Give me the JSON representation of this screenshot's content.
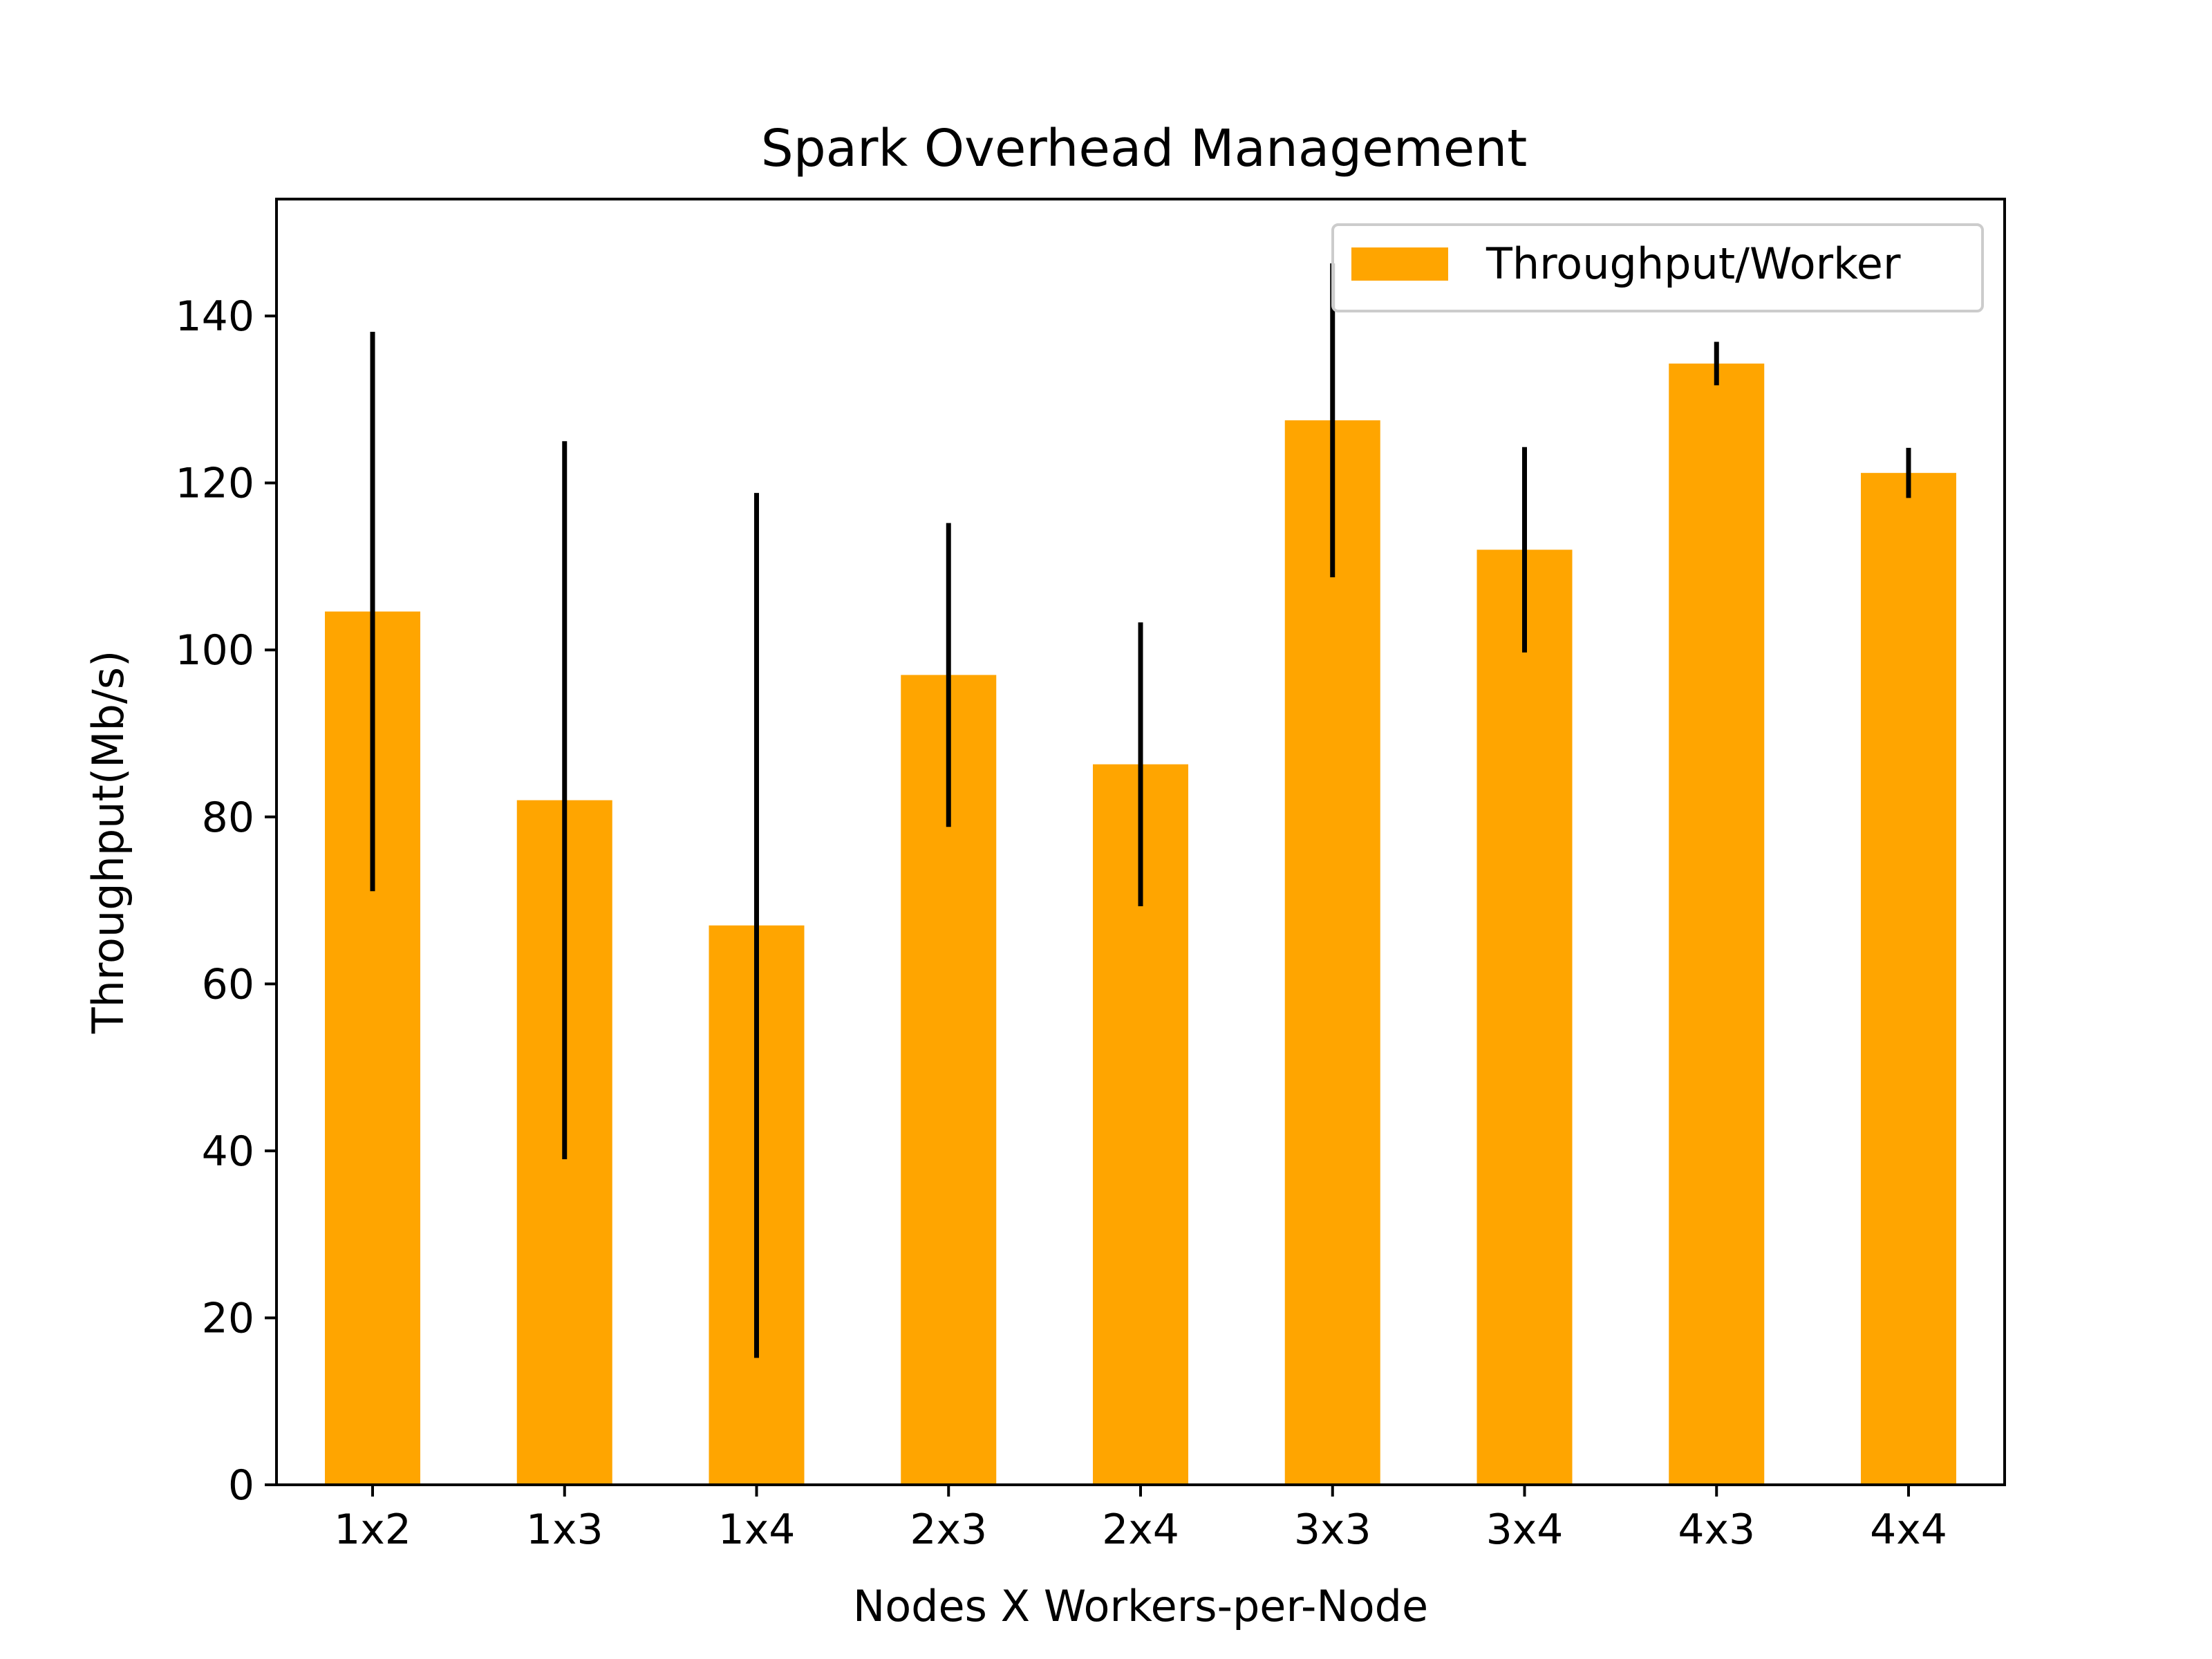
{
  "chart_data": {
    "type": "bar",
    "title": "Spark Overhead Management",
    "xlabel": "Nodes X Workers-per-Node",
    "ylabel": "Throughput(Mb/s)",
    "categories": [
      "1x2",
      "1x3",
      "1x4",
      "2x3",
      "2x4",
      "3x3",
      "3x4",
      "4x3",
      "4x4"
    ],
    "series": [
      {
        "name": "Throughput/Worker",
        "values": [
          104.6,
          82.0,
          67.0,
          97.0,
          86.3,
          127.5,
          112.0,
          134.3,
          121.2
        ],
        "error": [
          33.5,
          43.0,
          51.8,
          18.2,
          17.0,
          18.8,
          12.3,
          2.6,
          3.0
        ],
        "color": "#FFA500"
      }
    ],
    "ylim": [
      0,
      154
    ],
    "yticks": [
      0,
      20,
      40,
      60,
      80,
      100,
      120,
      140
    ],
    "grid": false,
    "legend_position": "top-right",
    "error_bar_color": "#000000"
  }
}
